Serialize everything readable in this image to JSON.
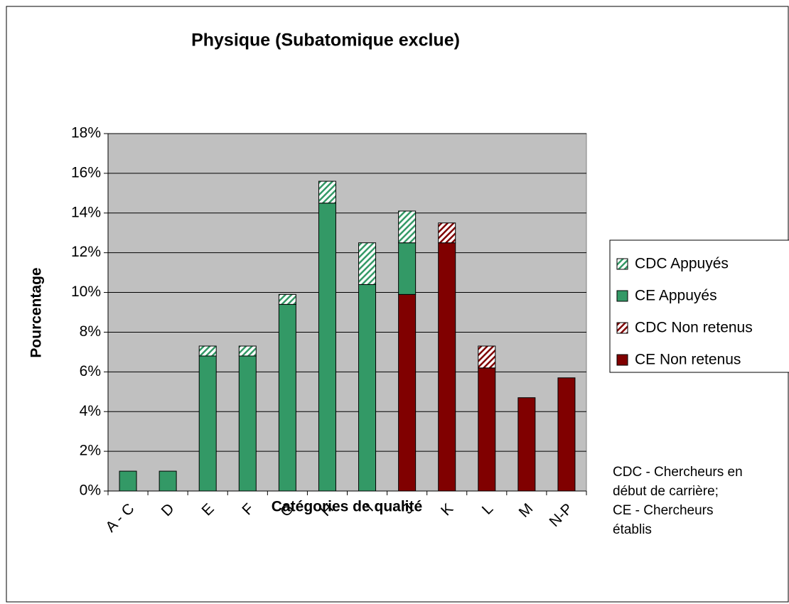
{
  "chart_data": {
    "type": "stacked-bar",
    "title": "Physique (Subatomique exclue)",
    "x_label": "Catégories de qualité",
    "y_label": "Pourcentage",
    "categories": [
      "A - C",
      "D",
      "E",
      "F",
      "G",
      "H",
      "I",
      "J",
      "K",
      "L",
      "M",
      "N-P"
    ],
    "series": [
      {
        "name": "CDC Appuyés",
        "color": "#339966",
        "hatch": true,
        "values": [
          null,
          null,
          0.5,
          0.5,
          0.5,
          1.1,
          2.1,
          1.6,
          null,
          null,
          null,
          null
        ]
      },
      {
        "name": "CE Appuyés",
        "color": "#339966",
        "hatch": false,
        "values": [
          1.0,
          1.0,
          6.8,
          6.8,
          9.4,
          14.5,
          10.4,
          2.6,
          null,
          null,
          null,
          null
        ]
      },
      {
        "name": "CDC Non retenus",
        "color": "#800000",
        "hatch": true,
        "values": [
          null,
          null,
          null,
          null,
          null,
          null,
          null,
          null,
          1.0,
          1.1,
          null,
          null
        ]
      },
      {
        "name": "CE Non retenus",
        "color": "#800000",
        "hatch": false,
        "values": [
          null,
          null,
          null,
          null,
          null,
          null,
          null,
          9.9,
          12.5,
          6.2,
          4.7,
          5.7
        ]
      }
    ],
    "ylim": [
      0,
      18
    ],
    "yticks": [
      {
        "value": 0,
        "label": "0%"
      },
      {
        "value": 2,
        "label": "2%"
      },
      {
        "value": 4,
        "label": "4%"
      },
      {
        "value": 6,
        "label": "6%"
      },
      {
        "value": 8,
        "label": "8%"
      },
      {
        "value": 10,
        "label": "10%"
      },
      {
        "value": 12,
        "label": "12%"
      },
      {
        "value": 14,
        "label": "14%"
      },
      {
        "value": 16,
        "label": "16%"
      },
      {
        "value": 18,
        "label": "18%"
      }
    ],
    "grid": true,
    "legend": "right",
    "notes": [
      "CDC - Chercheurs en",
      "début de carrière;",
      "CE - Chercheurs",
      "établis"
    ]
  }
}
